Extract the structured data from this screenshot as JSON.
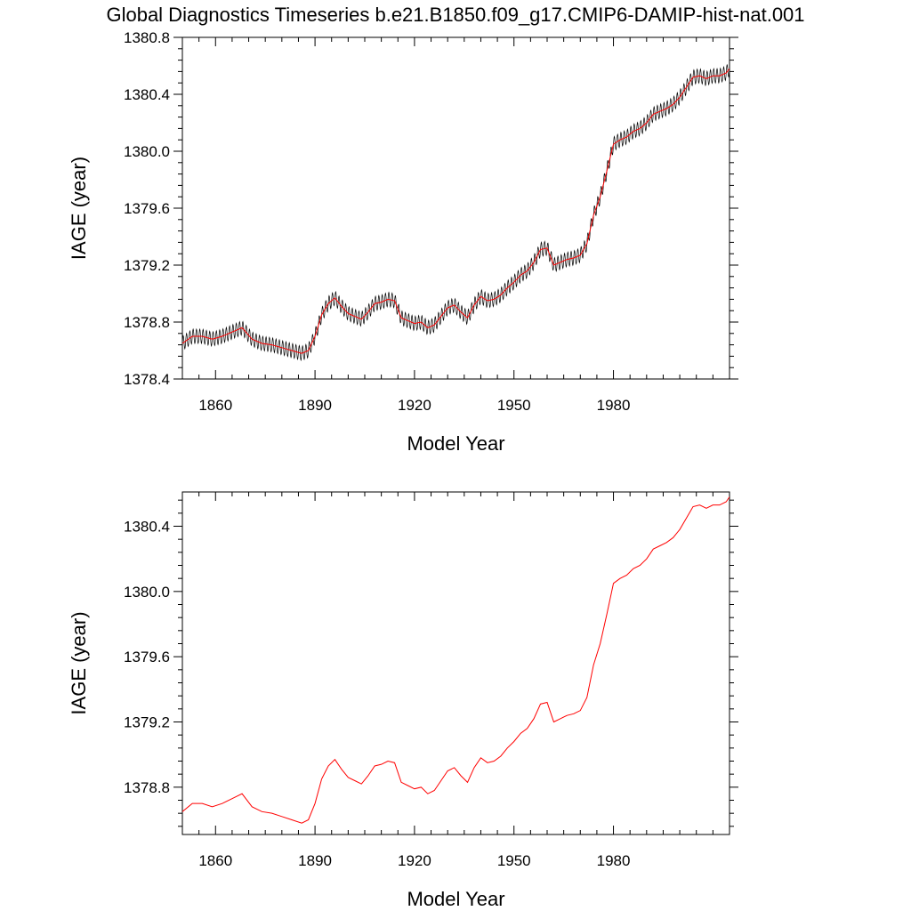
{
  "title": "Global Diagnostics Timeseries b.e21.B1850.f09_g17.CMIP6-DAMIP-hist-nat.001",
  "colors": {
    "raw_series": "#000000",
    "smoothed_series": "#ff0000",
    "axes": "#000000",
    "background": "#ffffff"
  },
  "chart_data": [
    {
      "type": "line",
      "title": "",
      "xlabel": "Model Year",
      "ylabel": "IAGE (year)",
      "xlim": [
        1850,
        2015
      ],
      "ylim": [
        1378.4,
        1380.8
      ],
      "xticks": [
        1860,
        1890,
        1920,
        1950,
        1980
      ],
      "yticks": [
        1378.4,
        1378.8,
        1379.2,
        1379.6,
        1380.0,
        1380.4,
        1380.8
      ],
      "xtick_labels": [
        "1860",
        "1890",
        "1920",
        "1950",
        "1980"
      ],
      "ytick_labels": [
        "1378.4",
        "1378.8",
        "1379.2",
        "1379.6",
        "1380.0",
        "1380.4",
        "1380.8"
      ],
      "grid": false,
      "series": [
        {
          "color": "#000000",
          "style": "monthly",
          "seasonal_amplitude": 0.05,
          "x": [
            1850,
            1853,
            1856,
            1859,
            1862,
            1865,
            1868,
            1871,
            1874,
            1877,
            1880,
            1883,
            1886,
            1888,
            1890,
            1892,
            1894,
            1896,
            1898,
            1900,
            1902,
            1904,
            1906,
            1908,
            1910,
            1912,
            1914,
            1916,
            1918,
            1920,
            1922,
            1924,
            1926,
            1928,
            1930,
            1932,
            1934,
            1936,
            1938,
            1940,
            1942,
            1944,
            1946,
            1948,
            1950,
            1952,
            1954,
            1956,
            1958,
            1960,
            1962,
            1964,
            1966,
            1968,
            1970,
            1972,
            1974,
            1976,
            1978,
            1980,
            1982,
            1984,
            1986,
            1988,
            1990,
            1992,
            1994,
            1996,
            1998,
            2000,
            2002,
            2004,
            2006,
            2008,
            2010,
            2012,
            2014,
            2015
          ],
          "y": [
            1378.65,
            1378.7,
            1378.7,
            1378.68,
            1378.7,
            1378.73,
            1378.76,
            1378.68,
            1378.65,
            1378.64,
            1378.62,
            1378.6,
            1378.58,
            1378.6,
            1378.7,
            1378.85,
            1378.93,
            1378.97,
            1378.91,
            1378.86,
            1378.84,
            1378.82,
            1378.87,
            1378.93,
            1378.94,
            1378.96,
            1378.95,
            1378.83,
            1378.81,
            1378.79,
            1378.8,
            1378.76,
            1378.78,
            1378.84,
            1378.9,
            1378.92,
            1378.87,
            1378.83,
            1378.92,
            1378.98,
            1378.95,
            1378.96,
            1378.99,
            1379.04,
            1379.08,
            1379.13,
            1379.16,
            1379.22,
            1379.31,
            1379.32,
            1379.2,
            1379.22,
            1379.24,
            1379.25,
            1379.27,
            1379.35,
            1379.55,
            1379.68,
            1379.86,
            1380.05,
            1380.08,
            1380.1,
            1380.14,
            1380.16,
            1380.2,
            1380.26,
            1380.28,
            1380.3,
            1380.33,
            1380.38,
            1380.45,
            1380.52,
            1380.53,
            1380.51,
            1380.53,
            1380.53,
            1380.55,
            1380.58
          ]
        },
        {
          "color": "#ff0000",
          "style": "smoothed",
          "x": [
            1850,
            1853,
            1856,
            1859,
            1862,
            1865,
            1868,
            1871,
            1874,
            1877,
            1880,
            1883,
            1886,
            1888,
            1890,
            1892,
            1894,
            1896,
            1898,
            1900,
            1902,
            1904,
            1906,
            1908,
            1910,
            1912,
            1914,
            1916,
            1918,
            1920,
            1922,
            1924,
            1926,
            1928,
            1930,
            1932,
            1934,
            1936,
            1938,
            1940,
            1942,
            1944,
            1946,
            1948,
            1950,
            1952,
            1954,
            1956,
            1958,
            1960,
            1962,
            1964,
            1966,
            1968,
            1970,
            1972,
            1974,
            1976,
            1978,
            1980,
            1982,
            1984,
            1986,
            1988,
            1990,
            1992,
            1994,
            1996,
            1998,
            2000,
            2002,
            2004,
            2006,
            2008,
            2010,
            2012,
            2014,
            2015
          ],
          "y": [
            1378.65,
            1378.7,
            1378.7,
            1378.68,
            1378.7,
            1378.73,
            1378.76,
            1378.68,
            1378.65,
            1378.64,
            1378.62,
            1378.6,
            1378.58,
            1378.6,
            1378.7,
            1378.85,
            1378.93,
            1378.97,
            1378.91,
            1378.86,
            1378.84,
            1378.82,
            1378.87,
            1378.93,
            1378.94,
            1378.96,
            1378.95,
            1378.83,
            1378.81,
            1378.79,
            1378.8,
            1378.76,
            1378.78,
            1378.84,
            1378.9,
            1378.92,
            1378.87,
            1378.83,
            1378.92,
            1378.98,
            1378.95,
            1378.96,
            1378.99,
            1379.04,
            1379.08,
            1379.13,
            1379.16,
            1379.22,
            1379.31,
            1379.32,
            1379.2,
            1379.22,
            1379.24,
            1379.25,
            1379.27,
            1379.35,
            1379.55,
            1379.68,
            1379.86,
            1380.05,
            1380.08,
            1380.1,
            1380.14,
            1380.16,
            1380.2,
            1380.26,
            1380.28,
            1380.3,
            1380.33,
            1380.38,
            1380.45,
            1380.52,
            1380.53,
            1380.51,
            1380.53,
            1380.53,
            1380.55,
            1380.58
          ]
        }
      ]
    },
    {
      "type": "line",
      "title": "",
      "xlabel": "Model Year",
      "ylabel": "IAGE (year)",
      "xlim": [
        1850,
        2015
      ],
      "ylim": [
        1378.51,
        1380.61
      ],
      "xticks": [
        1860,
        1890,
        1920,
        1950,
        1980
      ],
      "yticks": [
        1378.8,
        1379.2,
        1379.6,
        1380.0,
        1380.4
      ],
      "xtick_labels": [
        "1860",
        "1890",
        "1920",
        "1950",
        "1980"
      ],
      "ytick_labels": [
        "1378.8",
        "1379.2",
        "1379.6",
        "1380.0",
        "1380.4"
      ],
      "grid": false,
      "series": [
        {
          "color": "#ff0000",
          "style": "smoothed",
          "x": [
            1850,
            1853,
            1856,
            1859,
            1862,
            1865,
            1868,
            1871,
            1874,
            1877,
            1880,
            1883,
            1886,
            1888,
            1890,
            1892,
            1894,
            1896,
            1898,
            1900,
            1902,
            1904,
            1906,
            1908,
            1910,
            1912,
            1914,
            1916,
            1918,
            1920,
            1922,
            1924,
            1926,
            1928,
            1930,
            1932,
            1934,
            1936,
            1938,
            1940,
            1942,
            1944,
            1946,
            1948,
            1950,
            1952,
            1954,
            1956,
            1958,
            1960,
            1962,
            1964,
            1966,
            1968,
            1970,
            1972,
            1974,
            1976,
            1978,
            1980,
            1982,
            1984,
            1986,
            1988,
            1990,
            1992,
            1994,
            1996,
            1998,
            2000,
            2002,
            2004,
            2006,
            2008,
            2010,
            2012,
            2014,
            2015
          ],
          "y": [
            1378.65,
            1378.7,
            1378.7,
            1378.68,
            1378.7,
            1378.73,
            1378.76,
            1378.68,
            1378.65,
            1378.64,
            1378.62,
            1378.6,
            1378.58,
            1378.6,
            1378.7,
            1378.85,
            1378.93,
            1378.97,
            1378.91,
            1378.86,
            1378.84,
            1378.82,
            1378.87,
            1378.93,
            1378.94,
            1378.96,
            1378.95,
            1378.83,
            1378.81,
            1378.79,
            1378.8,
            1378.76,
            1378.78,
            1378.84,
            1378.9,
            1378.92,
            1378.87,
            1378.83,
            1378.92,
            1378.98,
            1378.95,
            1378.96,
            1378.99,
            1379.04,
            1379.08,
            1379.13,
            1379.16,
            1379.22,
            1379.31,
            1379.32,
            1379.2,
            1379.22,
            1379.24,
            1379.25,
            1379.27,
            1379.35,
            1379.55,
            1379.68,
            1379.86,
            1380.05,
            1380.08,
            1380.1,
            1380.14,
            1380.16,
            1380.2,
            1380.26,
            1380.28,
            1380.3,
            1380.33,
            1380.38,
            1380.45,
            1380.52,
            1380.53,
            1380.51,
            1380.53,
            1380.53,
            1380.55,
            1380.58
          ]
        }
      ]
    }
  ]
}
